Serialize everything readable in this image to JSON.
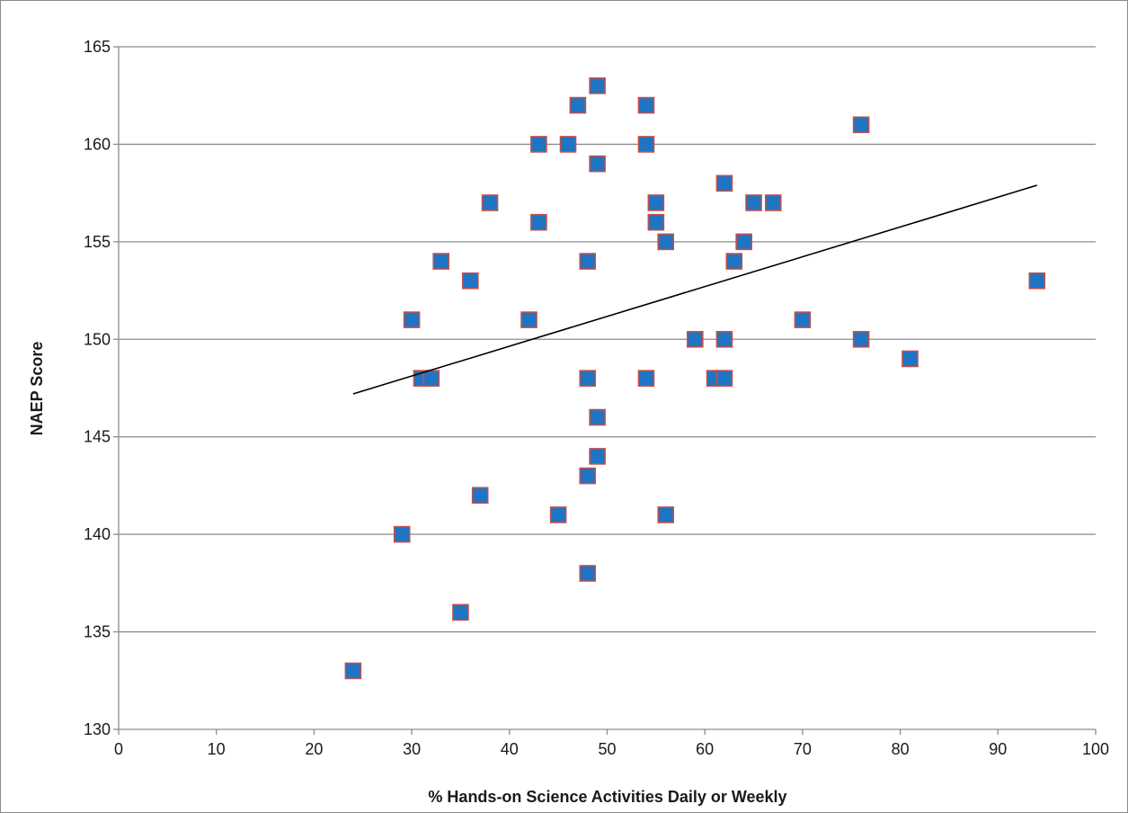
{
  "chart_data": {
    "type": "scatter",
    "title": "",
    "xlabel": "% Hands-on Science Activities Daily or Weekly",
    "ylabel": "NAEP Score",
    "xlim": [
      0,
      100
    ],
    "ylim": [
      130,
      165
    ],
    "x_ticks": [
      0,
      10,
      20,
      30,
      40,
      50,
      60,
      70,
      80,
      90,
      100
    ],
    "y_ticks": [
      130,
      135,
      140,
      145,
      150,
      155,
      160,
      165
    ],
    "grid": "horizontal",
    "legend": "none",
    "marker": "square",
    "marker_fill": "#1F74C4",
    "marker_edge": "#C0504D",
    "trendline": {
      "type": "linear",
      "x": [
        24,
        94
      ],
      "y": [
        147.2,
        157.9
      ],
      "color": "#000000"
    },
    "series": [
      {
        "points": [
          [
            24,
            133
          ],
          [
            29,
            140
          ],
          [
            30,
            151
          ],
          [
            31,
            148
          ],
          [
            32,
            148
          ],
          [
            33,
            154
          ],
          [
            35,
            136
          ],
          [
            36,
            153
          ],
          [
            37,
            142
          ],
          [
            38,
            157
          ],
          [
            42,
            151
          ],
          [
            43,
            160
          ],
          [
            43,
            156
          ],
          [
            45,
            141
          ],
          [
            46,
            160
          ],
          [
            47,
            162
          ],
          [
            48,
            154
          ],
          [
            48,
            148
          ],
          [
            48,
            143
          ],
          [
            48,
            138
          ],
          [
            49,
            163
          ],
          [
            49,
            159
          ],
          [
            49,
            146
          ],
          [
            49,
            144
          ],
          [
            54,
            162
          ],
          [
            54,
            160
          ],
          [
            54,
            148
          ],
          [
            55,
            157
          ],
          [
            55,
            156
          ],
          [
            56,
            155
          ],
          [
            56,
            141
          ],
          [
            59,
            150
          ],
          [
            61,
            148
          ],
          [
            62,
            158
          ],
          [
            62,
            150
          ],
          [
            62,
            148
          ],
          [
            63,
            154
          ],
          [
            64,
            155
          ],
          [
            65,
            157
          ],
          [
            67,
            157
          ],
          [
            70,
            151
          ],
          [
            76,
            161
          ],
          [
            76,
            150
          ],
          [
            81,
            149
          ],
          [
            94,
            153
          ]
        ]
      }
    ]
  }
}
